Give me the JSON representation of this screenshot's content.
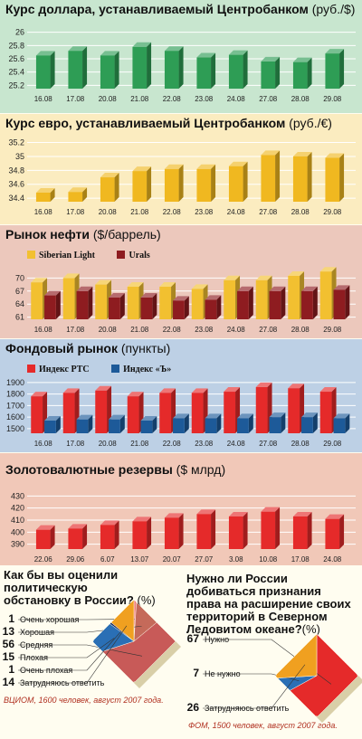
{
  "chart_data": [
    {
      "id": "usd",
      "type": "bar",
      "title": "Курс доллара, устанавливаемый Центробанком",
      "unit": "(руб./$)",
      "categories": [
        "16.08",
        "17.08",
        "20.08",
        "21.08",
        "22.08",
        "23.08",
        "24.08",
        "27.08",
        "28.08",
        "29.08"
      ],
      "values": [
        25.65,
        25.72,
        25.65,
        25.78,
        25.72,
        25.62,
        25.66,
        25.56,
        25.55,
        25.68
      ],
      "yticks": [
        25.2,
        25.4,
        25.6,
        25.8,
        26.0
      ],
      "ylim": [
        25.15,
        26.05
      ],
      "colors": {
        "bar": "#2e9d55",
        "bg": "#c8e6cf"
      }
    },
    {
      "id": "eur",
      "type": "bar",
      "title": "Курс евро, устанавливаемый Центробанком",
      "unit": "(руб./€)",
      "categories": [
        "16.08",
        "17.08",
        "20.08",
        "21.08",
        "22.08",
        "23.08",
        "24.08",
        "27.08",
        "28.08",
        "29.08"
      ],
      "values": [
        34.48,
        34.49,
        34.7,
        34.79,
        34.82,
        34.82,
        34.86,
        35.02,
        35.0,
        34.98
      ],
      "yticks": [
        34.4,
        34.6,
        34.8,
        35.0,
        35.2
      ],
      "ylim": [
        34.35,
        35.22
      ],
      "colors": {
        "bar": "#f0b820",
        "bg": "#fbecc0"
      }
    },
    {
      "id": "oil",
      "type": "bar",
      "title": "Рынок нефти",
      "unit": "($/баррель)",
      "categories": [
        "16.08",
        "17.08",
        "20.08",
        "21.08",
        "22.08",
        "23.08",
        "24.08",
        "27.08",
        "28.08",
        "29.08"
      ],
      "series": [
        {
          "name": "Siberian Light",
          "values": [
            69,
            70,
            68.5,
            68,
            68,
            67.5,
            69.5,
            69.5,
            70.5,
            71.5
          ]
        },
        {
          "name": "Urals",
          "values": [
            66,
            67,
            65.5,
            65.5,
            64.8,
            65,
            67,
            67,
            67,
            67.3
          ]
        }
      ],
      "yticks": [
        61,
        64,
        67,
        70
      ],
      "ylim": [
        60.5,
        73
      ],
      "colors": {
        "s1": "#f2c030",
        "s2": "#8e1c20",
        "bg": "#ecc8bc"
      }
    },
    {
      "id": "stock",
      "type": "bar",
      "title": "Фондовый рынок",
      "unit": "(пункты)",
      "categories": [
        "16.08",
        "17.08",
        "20.08",
        "21.08",
        "22.08",
        "23.08",
        "24.08",
        "27.08",
        "28.08",
        "29.08"
      ],
      "series": [
        {
          "name": "Индекс РТС",
          "values": [
            1780,
            1810,
            1830,
            1780,
            1810,
            1810,
            1820,
            1860,
            1850,
            1820
          ]
        },
        {
          "name": "Индекс «Ъ»",
          "values": [
            1570,
            1580,
            1580,
            1570,
            1590,
            1590,
            1590,
            1600,
            1600,
            1590
          ]
        }
      ],
      "yticks": [
        1500,
        1600,
        1700,
        1800,
        1900
      ],
      "ylim": [
        1460,
        1930
      ],
      "colors": {
        "s1": "#e52a2a",
        "s2": "#1d5a99",
        "bg": "#bdd0e5"
      }
    },
    {
      "id": "reserves",
      "type": "bar",
      "title": "Золотовалютные резервы",
      "unit": "($ млрд)",
      "categories": [
        "22.06",
        "29.06",
        "6.07",
        "13.07",
        "20.07",
        "27.07",
        "3.08",
        "10.08",
        "17.08",
        "24.08"
      ],
      "values": [
        402,
        403,
        406,
        409,
        412,
        415,
        413,
        417,
        413,
        411
      ],
      "yticks": [
        390,
        400,
        410,
        420,
        430
      ],
      "ylim": [
        386,
        434
      ],
      "colors": {
        "bar": "#e52a2a",
        "bg": "#f1c8b8"
      }
    },
    {
      "id": "poll1",
      "type": "pie",
      "title": "Как бы вы оценили политическую обстановку в России?",
      "unit": "(%)",
      "categories": [
        "Очень хорошая",
        "Хорошая",
        "Средняя",
        "Плохая",
        "Очень плохая",
        "Затрудняюсь ответить"
      ],
      "values": [
        1,
        13,
        56,
        15,
        1,
        14
      ],
      "colors": [
        "#f07878",
        "#c56a5a",
        "#c85a58",
        "#2a6fb5",
        "#1a2a60",
        "#f0a020"
      ],
      "source": "ВЦИОМ, 1600 человек, август 2007 года."
    },
    {
      "id": "poll2",
      "type": "pie",
      "title": "Нужно ли России добиваться признания права на расширение своих территорий в Северном Ледовитом океане?",
      "unit": "(%)",
      "categories": [
        "Нужно",
        "Не нужно",
        "Затрудняюсь ответить"
      ],
      "values": [
        67,
        7,
        26
      ],
      "colors": [
        "#e52a2a",
        "#2a6fb5",
        "#f0a020"
      ],
      "source": "ФОМ, 1500 человек, август 2007 года."
    }
  ]
}
